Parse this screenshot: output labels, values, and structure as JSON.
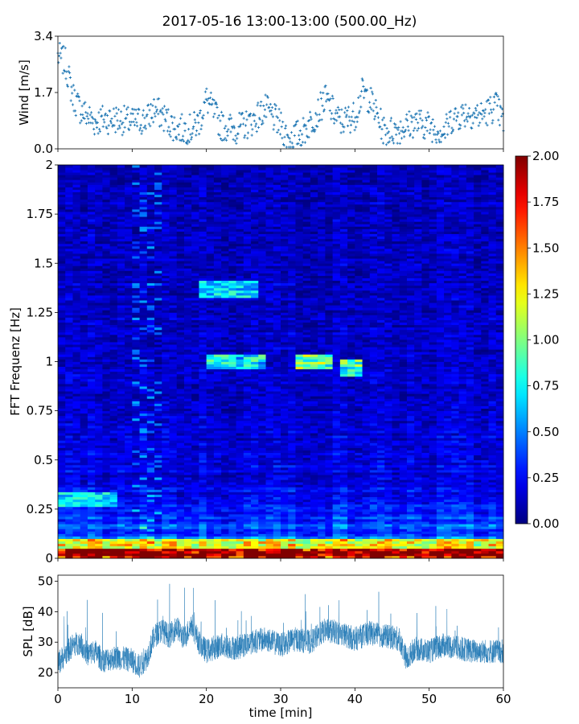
{
  "figure": {
    "title": "2017-05-16 13:00-13:00 (500.00_Hz)"
  },
  "chart_data": [
    {
      "type": "scatter",
      "panel": "wind",
      "ylabel": "Wind [m/s]",
      "xlim": [
        0,
        60
      ],
      "ylim": [
        0,
        3.4
      ],
      "yticks": [
        0.0,
        1.7,
        3.4
      ],
      "ytick_labels": [
        "0.0",
        "1.7",
        "3.4"
      ],
      "xtick_labels_shown": false,
      "marker": "+",
      "color": "#1f77b4",
      "series_envelope": {
        "x": [
          0,
          1,
          2,
          3,
          4,
          5,
          6,
          8,
          10,
          12,
          13,
          14,
          16,
          18,
          19,
          20,
          22,
          24,
          26,
          28,
          30,
          31,
          33,
          35,
          36,
          38,
          40,
          41,
          42,
          44,
          46,
          48,
          50,
          52,
          53,
          55,
          57,
          59,
          60
        ],
        "y": [
          2.8,
          2.6,
          1.6,
          1.2,
          1.0,
          0.8,
          0.9,
          0.9,
          0.8,
          0.9,
          1.2,
          1.0,
          0.6,
          0.6,
          0.8,
          1.5,
          0.7,
          0.6,
          0.8,
          1.2,
          0.7,
          0.3,
          0.5,
          1.1,
          1.5,
          0.8,
          1.0,
          1.7,
          1.5,
          0.5,
          0.6,
          0.8,
          0.7,
          0.5,
          0.9,
          1.1,
          1.0,
          1.3,
          0.8
        ]
      }
    },
    {
      "type": "heatmap",
      "panel": "spectrogram",
      "ylabel": "FFT Frequenz [Hz]",
      "xlim": [
        0,
        60
      ],
      "ylim": [
        0,
        2
      ],
      "yticks": [
        0,
        0.25,
        0.5,
        0.75,
        1,
        1.25,
        1.5,
        1.75,
        2
      ],
      "ytick_labels": [
        "0",
        "0.25",
        "0.5",
        "0.75",
        "1",
        "1.25",
        "1.5",
        "1.75",
        "2"
      ],
      "colormap": "jet",
      "colorbar": {
        "vmin": 0.0,
        "vmax": 2.0,
        "ticks": [
          0.0,
          0.25,
          0.5,
          0.75,
          1.0,
          1.25,
          1.5,
          1.75,
          2.0
        ],
        "tick_labels": [
          "0.00",
          "0.25",
          "0.50",
          "0.75",
          "1.00",
          "1.25",
          "1.50",
          "1.75",
          "2.00"
        ]
      },
      "features": [
        {
          "t_min": 20,
          "t_max": 28,
          "f": 1.0,
          "level": 1.0
        },
        {
          "t_min": 32,
          "t_max": 37,
          "f": 1.0,
          "level": 1.3
        },
        {
          "t_min": 38,
          "t_max": 41,
          "f": 0.97,
          "level": 1.2
        },
        {
          "t_min": 19,
          "t_max": 27,
          "f": 1.37,
          "level": 0.9
        },
        {
          "t_min": 0,
          "t_max": 60,
          "f": 0.02,
          "level": 1.8
        },
        {
          "t_min": 0,
          "t_max": 8,
          "f": 0.3,
          "level": 0.9
        }
      ]
    },
    {
      "type": "line",
      "panel": "spl",
      "xlabel": "time [min]",
      "ylabel": "SPL [dB]",
      "xlim": [
        0,
        60
      ],
      "ylim": [
        15,
        52
      ],
      "xticks": [
        0,
        10,
        20,
        30,
        40,
        50,
        60
      ],
      "xtick_labels": [
        "0",
        "10",
        "20",
        "30",
        "40",
        "50",
        "60"
      ],
      "yticks": [
        20,
        30,
        40,
        50
      ],
      "ytick_labels": [
        "20",
        "30",
        "40",
        "50"
      ],
      "color": "#1f77b4",
      "series_envelope": {
        "x": [
          0,
          1,
          2,
          3,
          4,
          5,
          6,
          8,
          10,
          11,
          12,
          13,
          14,
          15,
          16,
          17,
          18,
          19,
          20,
          22,
          24,
          26,
          28,
          30,
          32,
          34,
          36,
          38,
          40,
          42,
          44,
          46,
          47,
          48,
          50,
          52,
          54,
          56,
          58,
          60
        ],
        "y": [
          23,
          26,
          29,
          30,
          26,
          27,
          24,
          25,
          24,
          22,
          25,
          32,
          34,
          32,
          35,
          31,
          36,
          30,
          27,
          29,
          28,
          30,
          31,
          29,
          31,
          30,
          34,
          33,
          31,
          33,
          32,
          31,
          24,
          28,
          27,
          29,
          28,
          27,
          27,
          27
        ]
      }
    }
  ]
}
